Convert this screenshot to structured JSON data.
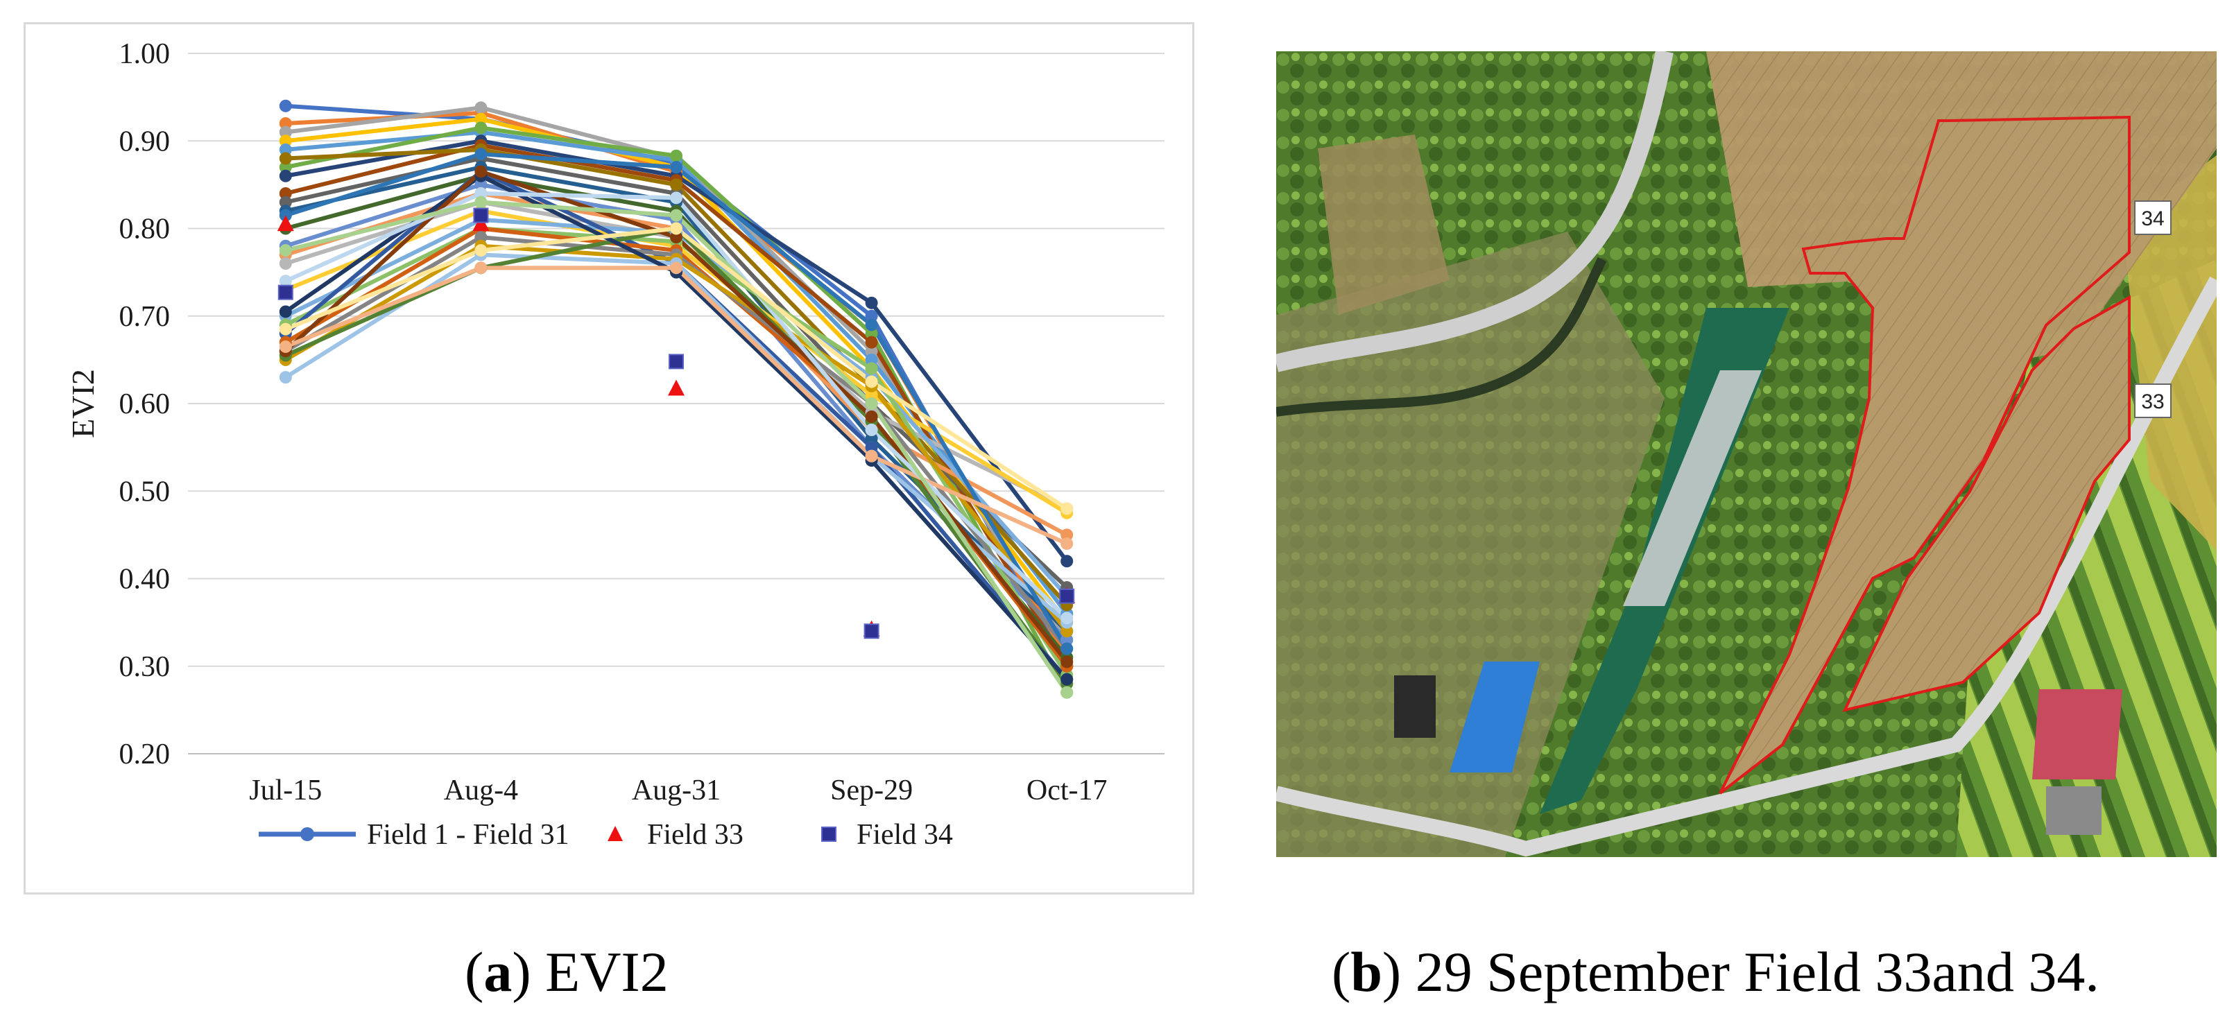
{
  "chart_data": {
    "type": "line",
    "title": "",
    "xlabel": "",
    "ylabel": "EVI2",
    "categories": [
      "Jul-15",
      "Aug-4",
      "Aug-31",
      "Sep-29",
      "Oct-17"
    ],
    "ylim": [
      0.2,
      1.0
    ],
    "yticks": [
      "0.20",
      "0.30",
      "0.40",
      "0.50",
      "0.60",
      "0.70",
      "0.80",
      "0.90",
      "1.00"
    ],
    "grid": true,
    "legend": [
      "Field 1 - Field 31",
      "Field 33",
      "Field 34"
    ],
    "legend_placement": "bottom",
    "series": [
      {
        "name": "Field 1",
        "color": "#4472c4",
        "values": [
          0.94,
          0.925,
          0.875,
          0.7,
          0.3
        ]
      },
      {
        "name": "Field 2",
        "color": "#ed7d31",
        "values": [
          0.92,
          0.932,
          0.865,
          0.69,
          0.31
        ]
      },
      {
        "name": "Field 3",
        "color": "#a5a5a5",
        "values": [
          0.91,
          0.938,
          0.88,
          0.66,
          0.33
        ]
      },
      {
        "name": "Field 4",
        "color": "#ffc000",
        "values": [
          0.9,
          0.925,
          0.87,
          0.64,
          0.35
        ]
      },
      {
        "name": "Field 5",
        "color": "#5b9bd5",
        "values": [
          0.89,
          0.91,
          0.878,
          0.65,
          0.36
        ]
      },
      {
        "name": "Field 6",
        "color": "#70ad47",
        "values": [
          0.87,
          0.915,
          0.883,
          0.68,
          0.27
        ]
      },
      {
        "name": "Field 7",
        "color": "#264478",
        "values": [
          0.86,
          0.9,
          0.86,
          0.715,
          0.42
        ]
      },
      {
        "name": "Field 8",
        "color": "#9e480e",
        "values": [
          0.84,
          0.895,
          0.855,
          0.67,
          0.3
        ]
      },
      {
        "name": "Field 9",
        "color": "#636363",
        "values": [
          0.83,
          0.88,
          0.84,
          0.6,
          0.39
        ]
      },
      {
        "name": "Field 10",
        "color": "#997300",
        "values": [
          0.88,
          0.89,
          0.85,
          0.62,
          0.37
        ]
      },
      {
        "name": "Field 11",
        "color": "#255e91",
        "values": [
          0.82,
          0.87,
          0.83,
          0.56,
          0.34
        ]
      },
      {
        "name": "Field 12",
        "color": "#43682b",
        "values": [
          0.8,
          0.86,
          0.82,
          0.58,
          0.31
        ]
      },
      {
        "name": "Field 13",
        "color": "#698ed0",
        "values": [
          0.78,
          0.85,
          0.81,
          0.55,
          0.33
        ]
      },
      {
        "name": "Field 14",
        "color": "#f1975a",
        "values": [
          0.77,
          0.84,
          0.8,
          0.57,
          0.45
        ]
      },
      {
        "name": "Field 15",
        "color": "#b7b7b7",
        "values": [
          0.76,
          0.83,
          0.79,
          0.59,
          0.48
        ]
      },
      {
        "name": "Field 16",
        "color": "#ffcd33",
        "values": [
          0.73,
          0.82,
          0.78,
          0.61,
          0.475
        ]
      },
      {
        "name": "Field 17",
        "color": "#7cafdd",
        "values": [
          0.7,
          0.81,
          0.795,
          0.63,
          0.38
        ]
      },
      {
        "name": "Field 18",
        "color": "#8cc168",
        "values": [
          0.69,
          0.8,
          0.785,
          0.64,
          0.29
        ]
      },
      {
        "name": "Field 19",
        "color": "#335aa1",
        "values": [
          0.68,
          0.865,
          0.76,
          0.55,
          0.285
        ]
      },
      {
        "name": "Field 20",
        "color": "#d26012",
        "values": [
          0.67,
          0.8,
          0.775,
          0.585,
          0.3
        ]
      },
      {
        "name": "Field 21",
        "color": "#848484",
        "values": [
          0.66,
          0.79,
          0.77,
          0.6,
          0.32
        ]
      },
      {
        "name": "Field 22",
        "color": "#cc9a00",
        "values": [
          0.65,
          0.78,
          0.765,
          0.62,
          0.34
        ]
      },
      {
        "name": "Field 23",
        "color": "#9dc3e6",
        "values": [
          0.63,
          0.77,
          0.76,
          0.54,
          0.35
        ]
      },
      {
        "name": "Field 24",
        "color": "#548235",
        "values": [
          0.655,
          0.755,
          0.8,
          0.58,
          0.28
        ]
      },
      {
        "name": "Field 25",
        "color": "#1f3864",
        "values": [
          0.705,
          0.86,
          0.75,
          0.535,
          0.285
        ]
      },
      {
        "name": "Field 26",
        "color": "#843c0c",
        "values": [
          0.66,
          0.865,
          0.79,
          0.585,
          0.305
        ]
      },
      {
        "name": "Field 27",
        "color": "#2e75b6",
        "values": [
          0.815,
          0.885,
          0.87,
          0.69,
          0.32
        ]
      },
      {
        "name": "Field 28",
        "color": "#f4b183",
        "values": [
          0.665,
          0.755,
          0.755,
          0.54,
          0.44
        ]
      },
      {
        "name": "Field 29",
        "color": "#bdd7ee",
        "values": [
          0.74,
          0.84,
          0.835,
          0.57,
          0.355
        ]
      },
      {
        "name": "Field 30",
        "color": "#a9d18e",
        "values": [
          0.775,
          0.83,
          0.815,
          0.6,
          0.27
        ]
      },
      {
        "name": "Field 31",
        "color": "#ffe699",
        "values": [
          0.685,
          0.775,
          0.8,
          0.625,
          0.48
        ]
      }
    ],
    "markers": [
      {
        "name": "Field 33",
        "shape": "triangle",
        "color": "#ee1111",
        "values": [
          0.805,
          0.805,
          0.617,
          0.342,
          0.38
        ]
      },
      {
        "name": "Field 34",
        "shape": "square",
        "color": "#2e3192",
        "values": [
          0.727,
          0.815,
          0.648,
          0.34,
          0.38
        ]
      }
    ]
  },
  "photo": {
    "field_labels": [
      "34",
      "33"
    ],
    "colors": {
      "boundary": "#e01b1b",
      "field_fill": "#b99a68"
    }
  },
  "captions": {
    "a_letter": "a",
    "a_text": " EVI2",
    "b_letter": "b",
    "b_text": " 29 September Field 33and 34."
  }
}
